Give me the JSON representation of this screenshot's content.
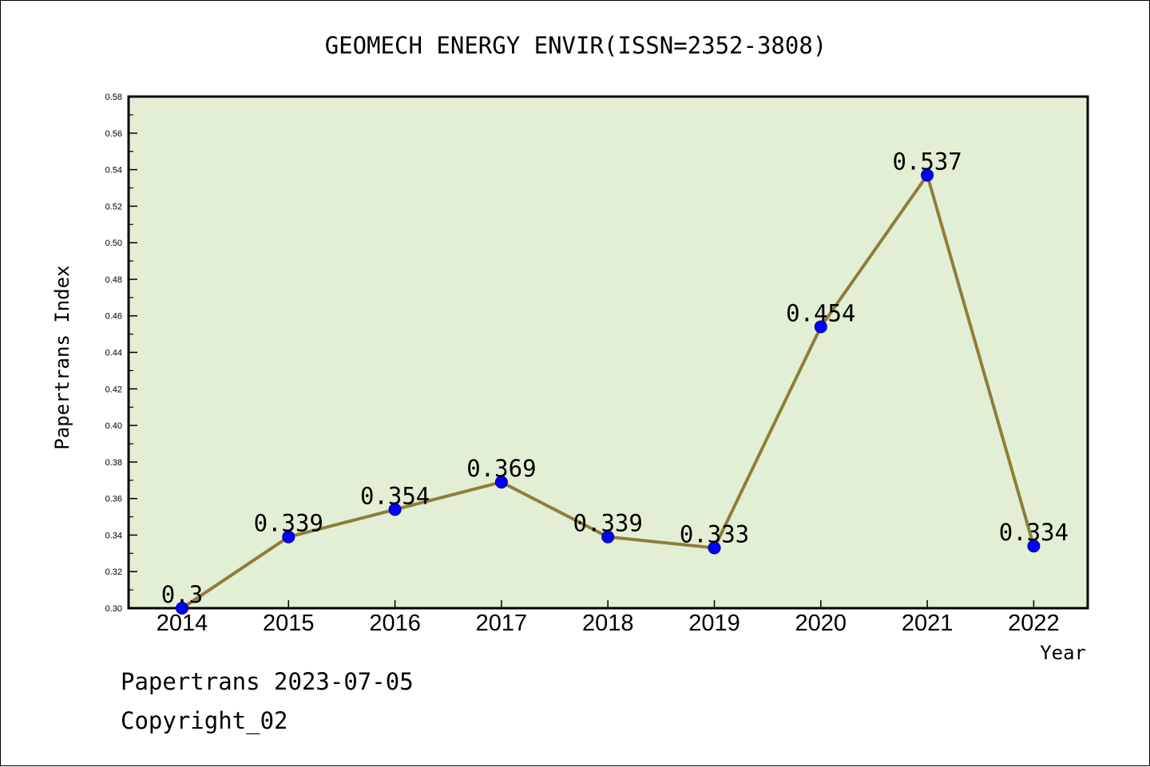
{
  "chart_data": {
    "type": "line",
    "title": "GEOMECH ENERGY ENVIR(ISSN=2352-3808)",
    "xlabel": "Year",
    "ylabel": "Papertrans Index",
    "categories": [
      "2014",
      "2015",
      "2016",
      "2017",
      "2018",
      "2019",
      "2020",
      "2021",
      "2022"
    ],
    "series": [
      {
        "values": [
          0.3,
          0.339,
          0.354,
          0.369,
          0.339,
          0.333,
          0.454,
          0.537,
          0.334
        ],
        "labels": [
          "0.3",
          "0.339",
          "0.354",
          "0.369",
          "0.339",
          "0.333",
          "0.454",
          "0.537",
          "0.334"
        ]
      }
    ],
    "ylim": [
      0.3,
      0.58
    ],
    "yticks": [
      "0.30",
      "0.32",
      "0.34",
      "0.36",
      "0.38",
      "0.40",
      "0.42",
      "0.44",
      "0.46",
      "0.48",
      "0.50",
      "0.52",
      "0.54",
      "0.56",
      "0.58"
    ],
    "grid": false,
    "legend": "none",
    "colors": {
      "plot_background": "#e2efd5",
      "line": "#8c7f3a",
      "marker": "#0000ff",
      "marker_edge": "#00007a"
    }
  },
  "footer": {
    "date_text": "Papertrans 2023-07-05",
    "copyright_text": "Copyright_02"
  }
}
